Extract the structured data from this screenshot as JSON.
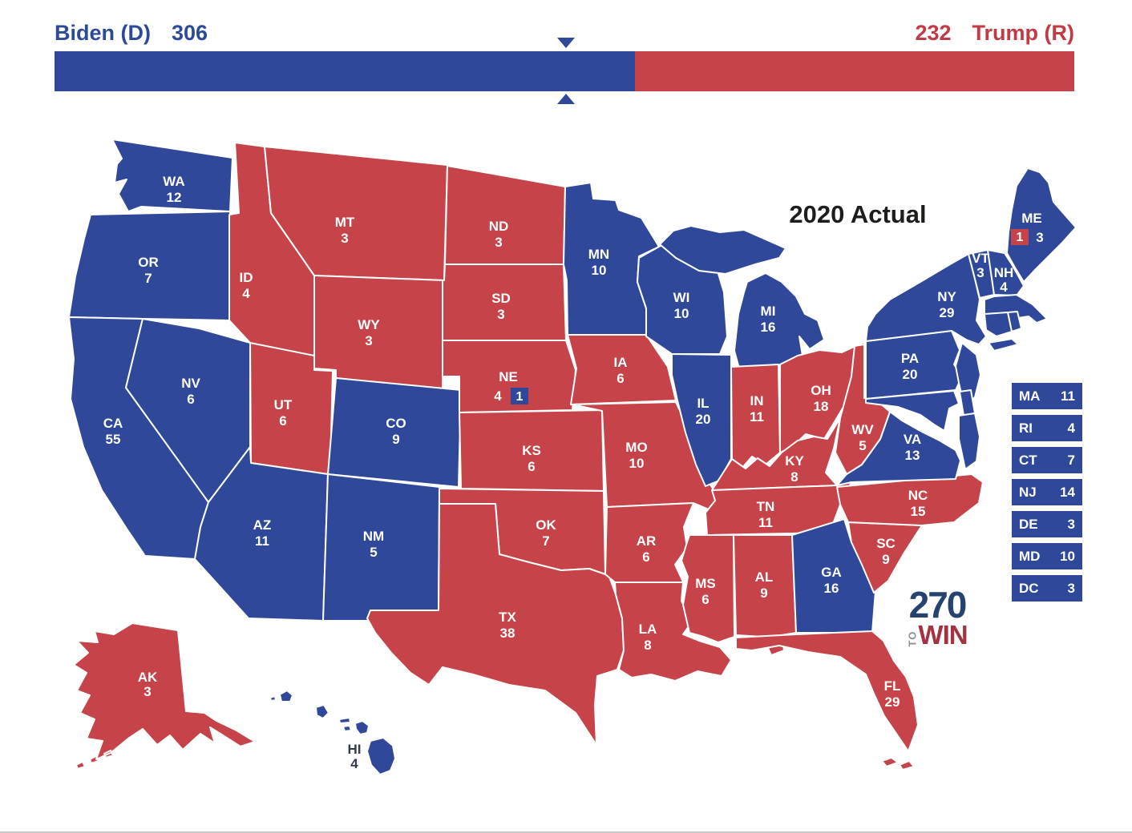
{
  "colors": {
    "dem": "#2f4899",
    "rep": "#c64349",
    "dem_text": "#2d4a9a",
    "rep_text": "#c23a44",
    "title": "#1d1d1b",
    "logo_270": "#25436e",
    "logo_win": "#a5323e",
    "logo_to": "#8d8d8d",
    "map_label_dark": "#323a4e"
  },
  "header": {
    "dem_label": "Biden (D)",
    "dem_votes": "306",
    "rep_votes": "232",
    "rep_label": "Trump (R)",
    "to_win": 270
  },
  "map": {
    "title": "2020 Actual",
    "states": [
      {
        "abbr": "WA",
        "ev": 12,
        "party": "D"
      },
      {
        "abbr": "OR",
        "ev": 7,
        "party": "D"
      },
      {
        "abbr": "CA",
        "ev": 55,
        "party": "D"
      },
      {
        "abbr": "NV",
        "ev": 6,
        "party": "D"
      },
      {
        "abbr": "ID",
        "ev": 4,
        "party": "R"
      },
      {
        "abbr": "MT",
        "ev": 3,
        "party": "R"
      },
      {
        "abbr": "WY",
        "ev": 3,
        "party": "R"
      },
      {
        "abbr": "UT",
        "ev": 6,
        "party": "R"
      },
      {
        "abbr": "CO",
        "ev": 9,
        "party": "D"
      },
      {
        "abbr": "AZ",
        "ev": 11,
        "party": "D"
      },
      {
        "abbr": "NM",
        "ev": 5,
        "party": "D"
      },
      {
        "abbr": "ND",
        "ev": 3,
        "party": "R"
      },
      {
        "abbr": "SD",
        "ev": 3,
        "party": "R"
      },
      {
        "abbr": "NE",
        "ev": 4,
        "party": "R",
        "split_ev": 1,
        "split_party": "D"
      },
      {
        "abbr": "KS",
        "ev": 6,
        "party": "R"
      },
      {
        "abbr": "OK",
        "ev": 7,
        "party": "R"
      },
      {
        "abbr": "TX",
        "ev": 38,
        "party": "R"
      },
      {
        "abbr": "MN",
        "ev": 10,
        "party": "D"
      },
      {
        "abbr": "IA",
        "ev": 6,
        "party": "R"
      },
      {
        "abbr": "MO",
        "ev": 10,
        "party": "R"
      },
      {
        "abbr": "AR",
        "ev": 6,
        "party": "R"
      },
      {
        "abbr": "LA",
        "ev": 8,
        "party": "R"
      },
      {
        "abbr": "WI",
        "ev": 10,
        "party": "D"
      },
      {
        "abbr": "IL",
        "ev": 20,
        "party": "D"
      },
      {
        "abbr": "MI",
        "ev": 16,
        "party": "D"
      },
      {
        "abbr": "IN",
        "ev": 11,
        "party": "R"
      },
      {
        "abbr": "OH",
        "ev": 18,
        "party": "R"
      },
      {
        "abbr": "KY",
        "ev": 8,
        "party": "R"
      },
      {
        "abbr": "TN",
        "ev": 11,
        "party": "R"
      },
      {
        "abbr": "MS",
        "ev": 6,
        "party": "R"
      },
      {
        "abbr": "AL",
        "ev": 9,
        "party": "R"
      },
      {
        "abbr": "GA",
        "ev": 16,
        "party": "D"
      },
      {
        "abbr": "FL",
        "ev": 29,
        "party": "R"
      },
      {
        "abbr": "SC",
        "ev": 9,
        "party": "R"
      },
      {
        "abbr": "NC",
        "ev": 15,
        "party": "R"
      },
      {
        "abbr": "VA",
        "ev": 13,
        "party": "D"
      },
      {
        "abbr": "WV",
        "ev": 5,
        "party": "R"
      },
      {
        "abbr": "PA",
        "ev": 20,
        "party": "D"
      },
      {
        "abbr": "NY",
        "ev": 29,
        "party": "D"
      },
      {
        "abbr": "NJ",
        "ev": 14,
        "party": "D"
      },
      {
        "abbr": "DE",
        "ev": 3,
        "party": "D"
      },
      {
        "abbr": "MD",
        "ev": 10,
        "party": "D"
      },
      {
        "abbr": "DC",
        "ev": 3,
        "party": "D"
      },
      {
        "abbr": "VT",
        "ev": 3,
        "party": "D"
      },
      {
        "abbr": "NH",
        "ev": 4,
        "party": "D"
      },
      {
        "abbr": "ME",
        "ev": 3,
        "party": "D",
        "split_ev": 1,
        "split_party": "R"
      },
      {
        "abbr": "MA",
        "ev": 11,
        "party": "D"
      },
      {
        "abbr": "RI",
        "ev": 4,
        "party": "D"
      },
      {
        "abbr": "CT",
        "ev": 7,
        "party": "D"
      },
      {
        "abbr": "AK",
        "ev": 3,
        "party": "R"
      },
      {
        "abbr": "HI",
        "ev": 4,
        "party": "D"
      }
    ]
  },
  "side_panel": {
    "items": [
      "MA",
      "RI",
      "CT",
      "NJ",
      "DE",
      "MD",
      "DC"
    ]
  },
  "logo": {
    "number": "270",
    "to": "TO",
    "win": "WIN"
  }
}
